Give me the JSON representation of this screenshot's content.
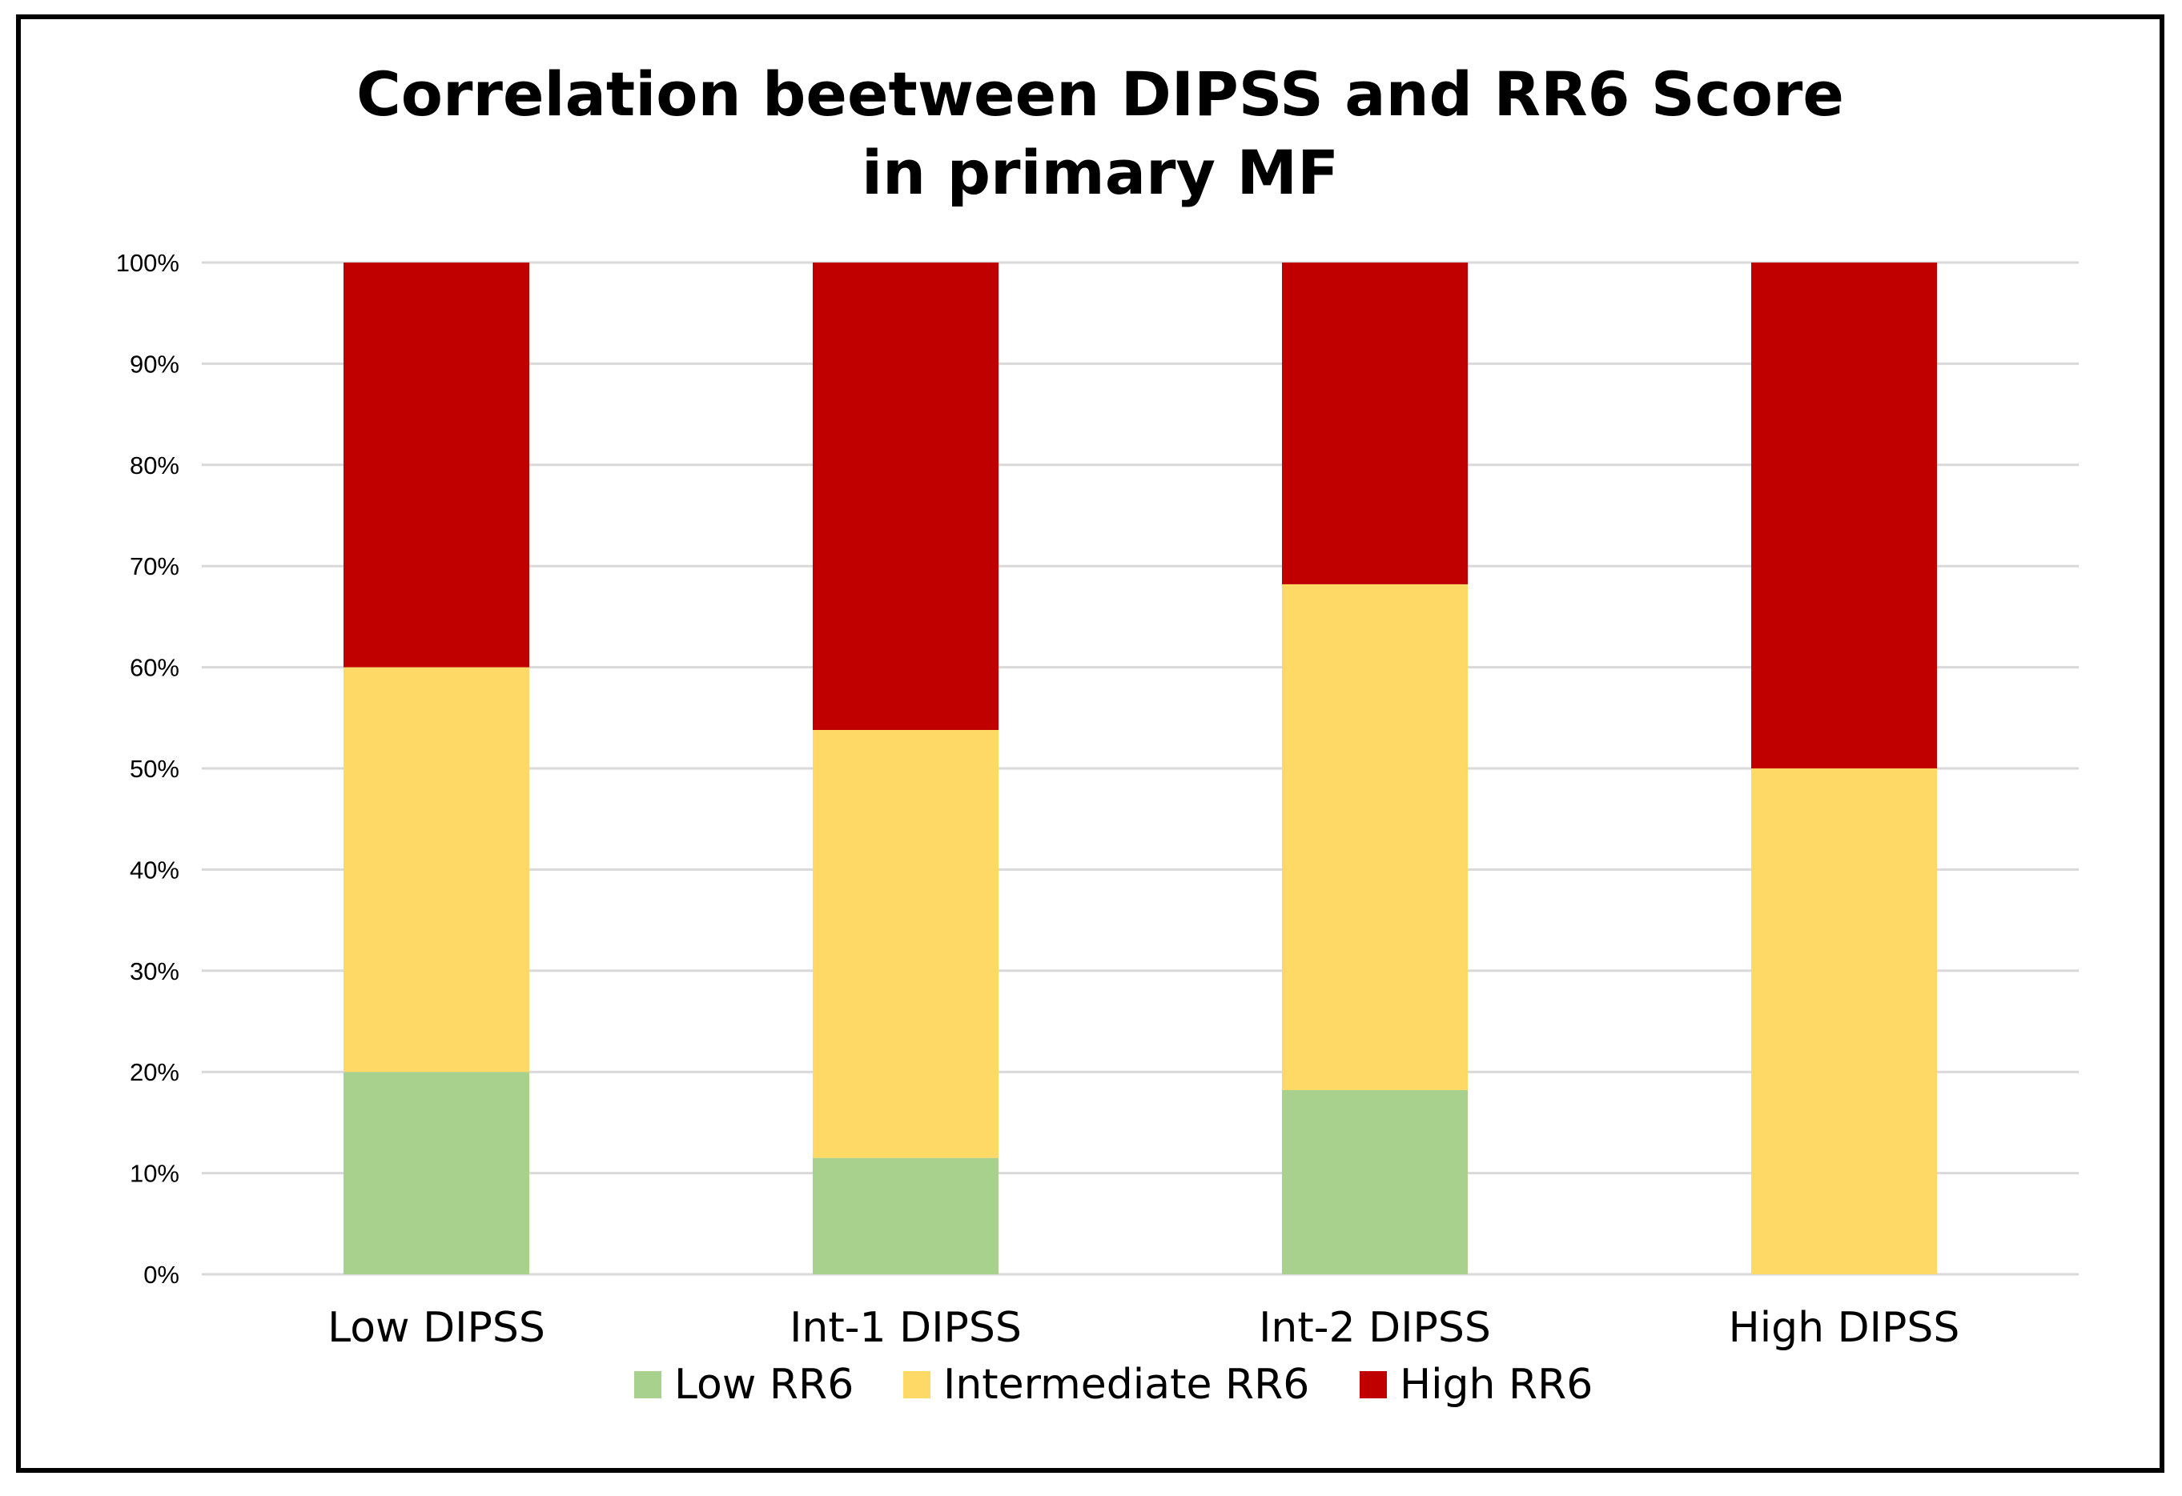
{
  "chart_data": {
    "type": "bar",
    "stacked": "percent",
    "title": [
      "Correlation beetween DIPSS and RR6 Score",
      "in primary MF"
    ],
    "categories": [
      "Low DIPSS",
      "Int-1 DIPSS",
      "Int-2 DIPSS",
      "High DIPSS"
    ],
    "series": [
      {
        "name": "Low RR6",
        "color": "#a9d18e",
        "values": [
          20,
          11.5,
          18.2,
          0
        ]
      },
      {
        "name": "Intermediate RR6",
        "color": "#ffd966",
        "values": [
          40,
          42.3,
          50,
          50
        ]
      },
      {
        "name": "High RR6",
        "color": "#c00000",
        "values": [
          40,
          46.2,
          31.8,
          50
        ]
      }
    ],
    "ylim": [
      0,
      100
    ],
    "yticks": [
      "0%",
      "10%",
      "20%",
      "30%",
      "40%",
      "50%",
      "60%",
      "70%",
      "80%",
      "90%",
      "100%"
    ],
    "grid": true,
    "legend": "bottom",
    "xlabel": "",
    "ylabel": ""
  }
}
